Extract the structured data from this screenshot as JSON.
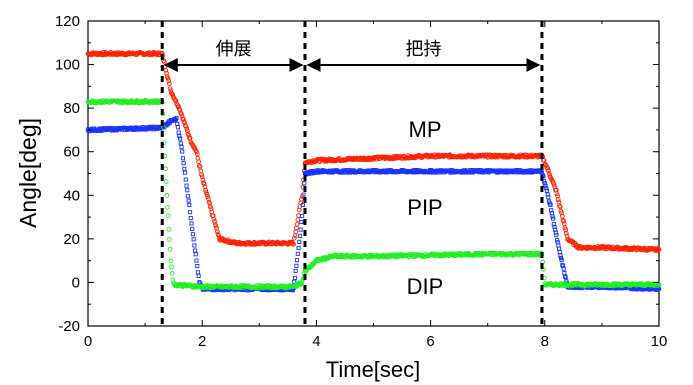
{
  "chart_data": {
    "type": "scatter",
    "xlabel": "Time[sec]",
    "ylabel": "Angle[deg]",
    "xlim": [
      0,
      10
    ],
    "ylim": [
      -20,
      120
    ],
    "xticks": [
      "0",
      "2",
      "4",
      "6",
      "8",
      "10"
    ],
    "yticks": [
      "-20",
      "0",
      "20",
      "40",
      "60",
      "80",
      "100",
      "120"
    ],
    "grid": false,
    "phase_lines_x": [
      1.3,
      3.8,
      7.95
    ],
    "phases": [
      {
        "label": "伸展",
        "x_start": 1.3,
        "x_end": 3.8
      },
      {
        "label": "把持",
        "x_start": 3.8,
        "x_end": 7.95
      }
    ],
    "series": [
      {
        "name": "MP",
        "color": "#ff2200",
        "points": [
          [
            0,
            105
          ],
          [
            1.3,
            105
          ],
          [
            1.45,
            88
          ],
          [
            1.6,
            80
          ],
          [
            1.8,
            65
          ],
          [
            1.9,
            60
          ],
          [
            2.0,
            48
          ],
          [
            2.3,
            20
          ],
          [
            2.6,
            18
          ],
          [
            3.0,
            18
          ],
          [
            3.6,
            18
          ],
          [
            3.75,
            40
          ],
          [
            3.8,
            55
          ],
          [
            4.0,
            56
          ],
          [
            5.0,
            57
          ],
          [
            6.0,
            58
          ],
          [
            7.0,
            58
          ],
          [
            7.95,
            58
          ],
          [
            8.05,
            52
          ],
          [
            8.2,
            42
          ],
          [
            8.4,
            20
          ],
          [
            8.6,
            16
          ],
          [
            9.0,
            16
          ],
          [
            10.0,
            15
          ]
        ]
      },
      {
        "name": "PIP",
        "color": "#1a33ff",
        "points": [
          [
            0,
            70
          ],
          [
            1.3,
            71
          ],
          [
            1.45,
            74
          ],
          [
            1.55,
            75
          ],
          [
            1.65,
            60
          ],
          [
            1.75,
            40
          ],
          [
            1.85,
            20
          ],
          [
            1.95,
            0
          ],
          [
            2.0,
            -3
          ],
          [
            3.0,
            -3
          ],
          [
            3.6,
            -3
          ],
          [
            3.75,
            30
          ],
          [
            3.8,
            50
          ],
          [
            4.0,
            51
          ],
          [
            5.0,
            51
          ],
          [
            6.0,
            51
          ],
          [
            7.0,
            51
          ],
          [
            7.95,
            51
          ],
          [
            8.1,
            35
          ],
          [
            8.25,
            15
          ],
          [
            8.4,
            -2
          ],
          [
            9.0,
            -2
          ],
          [
            10.0,
            -3
          ]
        ]
      },
      {
        "name": "DIP",
        "color": "#22ee22",
        "points": [
          [
            0,
            83
          ],
          [
            1.3,
            83
          ],
          [
            1.38,
            40
          ],
          [
            1.45,
            10
          ],
          [
            1.5,
            -1
          ],
          [
            2.0,
            -2
          ],
          [
            3.0,
            -2
          ],
          [
            3.6,
            -2
          ],
          [
            3.75,
            0
          ],
          [
            3.8,
            5
          ],
          [
            4.0,
            10
          ],
          [
            4.3,
            12
          ],
          [
            5.0,
            12
          ],
          [
            6.0,
            12.5
          ],
          [
            7.0,
            13
          ],
          [
            7.95,
            13
          ],
          [
            8.0,
            -1
          ],
          [
            9.0,
            -1
          ],
          [
            10.0,
            -1
          ]
        ]
      }
    ]
  }
}
